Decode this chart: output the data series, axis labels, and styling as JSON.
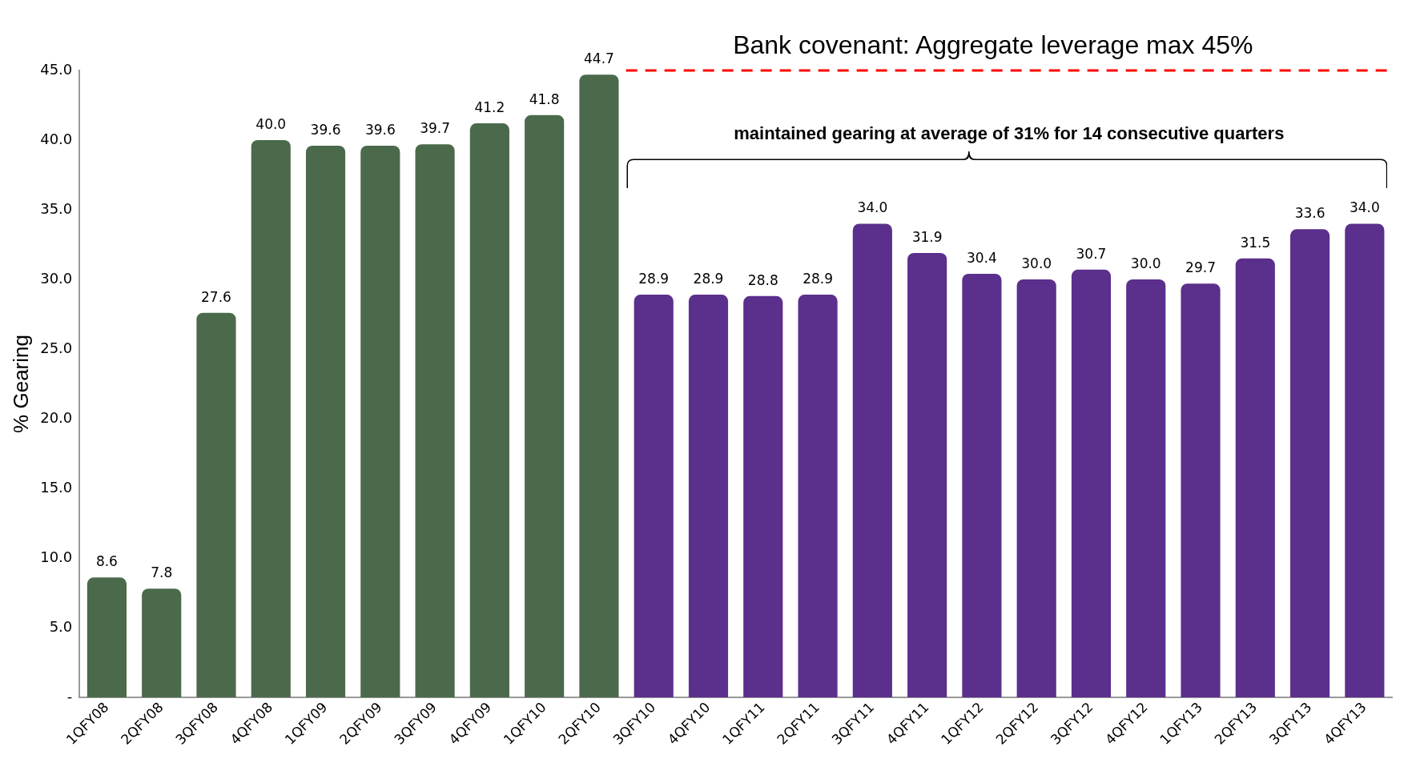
{
  "chart_data": {
    "type": "bar",
    "ylabel": "% Gearing",
    "categories": [
      "1QFY08",
      "2QFY08",
      "3QFY08",
      "4QFY08",
      "1QFY09",
      "2QFY09",
      "3QFY09",
      "4QFY09",
      "1QFY10",
      "2QFY10",
      "3QFY10",
      "4QFY10",
      "1QFY11",
      "2QFY11",
      "3QFY11",
      "4QFY11",
      "1QFY12",
      "2QFY12",
      "3QFY12",
      "4QFY12",
      "1QFY13",
      "2QFY13",
      "3QFY13",
      "4QFY13"
    ],
    "values": [
      8.6,
      7.8,
      27.6,
      40.0,
      39.6,
      39.6,
      39.7,
      41.2,
      41.8,
      44.7,
      28.9,
      28.9,
      28.8,
      28.9,
      34.0,
      31.9,
      30.4,
      30.0,
      30.7,
      30.0,
      29.7,
      31.5,
      33.6,
      34.0
    ],
    "value_labels": [
      "8.6",
      "7.8",
      "27.6",
      "40.0",
      "39.6",
      "39.6",
      "39.7",
      "41.2",
      "41.8",
      "44.7",
      "28.9",
      "28.9",
      "28.8",
      "28.9",
      "34.0",
      "31.9",
      "30.4",
      "30.0",
      "30.7",
      "30.0",
      "29.7",
      "31.5",
      "33.6",
      "34.0"
    ],
    "colors": [
      "#4b6a4b",
      "#4b6a4b",
      "#4b6a4b",
      "#4b6a4b",
      "#4b6a4b",
      "#4b6a4b",
      "#4b6a4b",
      "#4b6a4b",
      "#4b6a4b",
      "#4b6a4b",
      "#5b2f8c",
      "#5b2f8c",
      "#5b2f8c",
      "#5b2f8c",
      "#5b2f8c",
      "#5b2f8c",
      "#5b2f8c",
      "#5b2f8c",
      "#5b2f8c",
      "#5b2f8c",
      "#5b2f8c",
      "#5b2f8c",
      "#5b2f8c",
      "#5b2f8c"
    ],
    "ylim": [
      0,
      45
    ],
    "yticks": [
      {
        "value": 0,
        "label": "-"
      },
      {
        "value": 5,
        "label": "5.0"
      },
      {
        "value": 10,
        "label": "10.0"
      },
      {
        "value": 15,
        "label": "15.0"
      },
      {
        "value": 20,
        "label": "20.0"
      },
      {
        "value": 25,
        "label": "25.0"
      },
      {
        "value": 30,
        "label": "30.0"
      },
      {
        "value": 35,
        "label": "35.0"
      },
      {
        "value": 40,
        "label": "40.0"
      },
      {
        "value": 45,
        "label": "45.0"
      }
    ],
    "ref_lines": [
      {
        "axis": "y",
        "value": 45,
        "label": "Bank covenant: Aggregate leverage max 45%",
        "color": "#ff0000",
        "line_style": "dashed"
      }
    ],
    "annotations": [
      "maintained gearing at average of 31% for 14 consecutive quarters"
    ],
    "grid": false,
    "legend": false
  }
}
